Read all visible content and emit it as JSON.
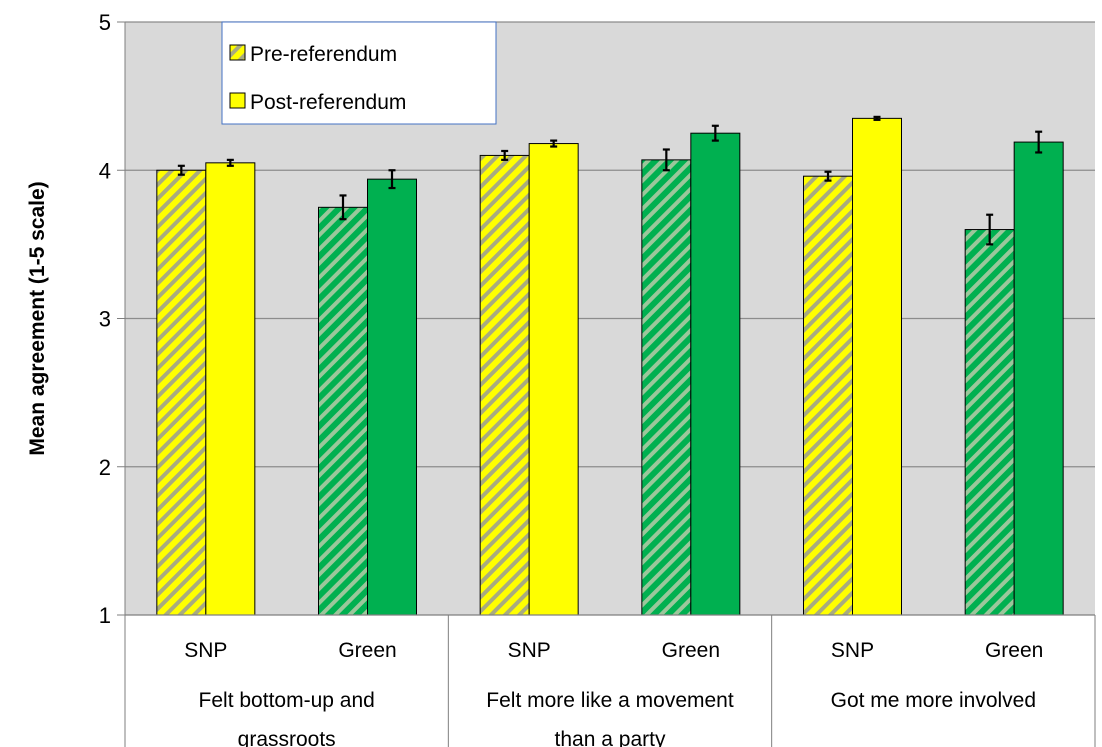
{
  "chart_data": {
    "type": "bar",
    "ylabel": "Mean agreement (1-5 scale)",
    "ylim": [
      1,
      5
    ],
    "yticks": [
      1,
      2,
      3,
      4,
      5
    ],
    "grid": true,
    "legend_position": "top-left",
    "colors": {
      "plot_background": "#d9d9d9",
      "snp": "#ffff00",
      "green": "#00b050",
      "stripe_snp": "#ffff00",
      "stripe_snp_alt": "#a8ab80",
      "stripe_green_alt": "#9bc79b",
      "legend_border": "#4472c4"
    },
    "series": [
      {
        "name": "Pre-referendum",
        "pattern": "hatched"
      },
      {
        "name": "Post-referendum",
        "pattern": "solid"
      }
    ],
    "groups": [
      {
        "label_lines": [
          "Felt bottom-up and",
          "grassroots"
        ],
        "parties": [
          {
            "label": "SNP",
            "color_key": "snp",
            "pre": 4.0,
            "pre_err": 0.03,
            "post": 4.05,
            "post_err": 0.02
          },
          {
            "label": "Green",
            "color_key": "green",
            "pre": 3.75,
            "pre_err": 0.08,
            "post": 3.94,
            "post_err": 0.06
          }
        ]
      },
      {
        "label_lines": [
          "Felt more like a movement",
          "than a party"
        ],
        "parties": [
          {
            "label": "SNP",
            "color_key": "snp",
            "pre": 4.1,
            "pre_err": 0.03,
            "post": 4.18,
            "post_err": 0.02
          },
          {
            "label": "Green",
            "color_key": "green",
            "pre": 4.07,
            "pre_err": 0.07,
            "post": 4.25,
            "post_err": 0.05
          }
        ]
      },
      {
        "label_lines": [
          "Got me more involved"
        ],
        "parties": [
          {
            "label": "SNP",
            "color_key": "snp",
            "pre": 3.96,
            "pre_err": 0.03,
            "post": 4.35,
            "post_err": 0.01
          },
          {
            "label": "Green",
            "color_key": "green",
            "pre": 3.6,
            "pre_err": 0.1,
            "post": 4.19,
            "post_err": 0.07
          }
        ]
      }
    ]
  }
}
